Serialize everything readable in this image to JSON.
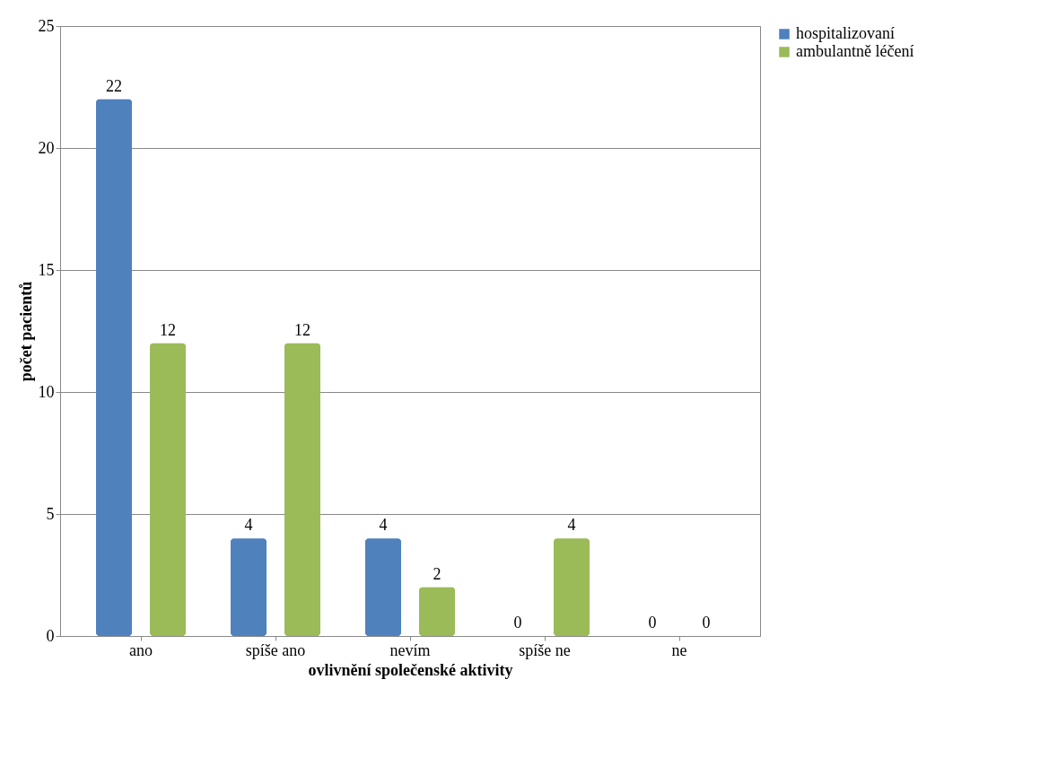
{
  "chart_data": {
    "type": "bar",
    "xlabel": "ovlivnění společenské aktivity",
    "ylabel": "počet pacientů",
    "categories": [
      "ano",
      "spíše ano",
      "nevím",
      "spíše ne",
      "ne"
    ],
    "series": [
      {
        "name": "hospitalizovaní",
        "color": "#4f81bd",
        "values": [
          22,
          4,
          4,
          0,
          0
        ]
      },
      {
        "name": "ambulantně léčení",
        "color": "#9bbb59",
        "values": [
          12,
          12,
          2,
          4,
          0
        ]
      }
    ],
    "ylim": [
      0,
      25
    ],
    "yticks": [
      0,
      5,
      10,
      15,
      20,
      25
    ],
    "grid": "y",
    "legend": "right",
    "data_labels": true
  }
}
